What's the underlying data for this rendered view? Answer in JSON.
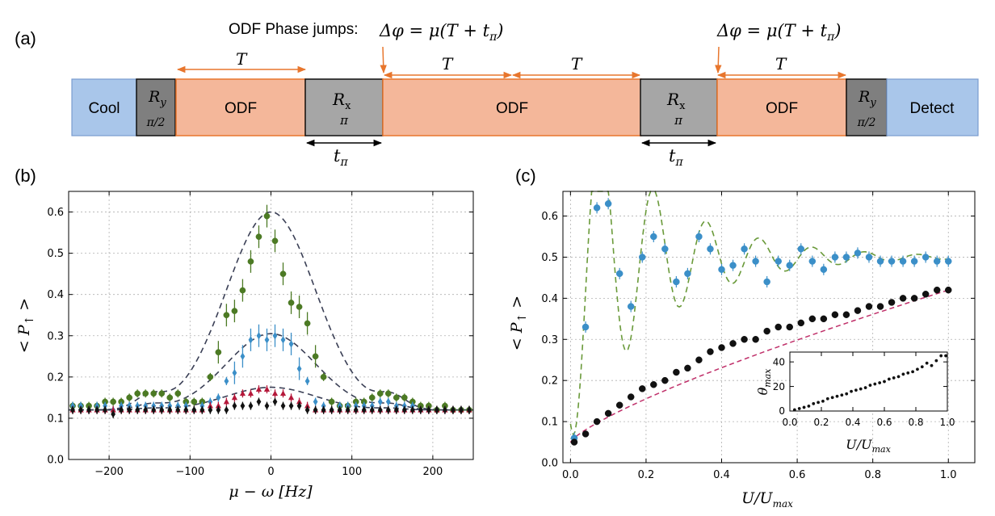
{
  "panel_a": {
    "label": "(a)",
    "odf_caption": "ODF Phase jumps:",
    "phase_formula": "Δφ = μ(T + t",
    "phase_sub": "π",
    "phase_close": ")",
    "T": "T",
    "t_pi": "t",
    "t_pi_sub": "π",
    "blocks": {
      "cool": "Cool",
      "detect": "Detect",
      "odf": "ODF",
      "ry": "R",
      "ry_sub": "y",
      "ry_angle": "π/2",
      "rx": "R",
      "rx_sub": "x",
      "rx_angle": "π"
    },
    "colors": {
      "cool": "#a9c6ea",
      "odf": "#f4b79a",
      "odf_edge": "#e8762d",
      "pulse_light": "#a6a6a6",
      "pulse_dark": "#7f7f7f",
      "arrow": "#e8762d"
    }
  },
  "panel_b": {
    "label": "(b)",
    "xlabel": "μ − ω [Hz]",
    "ylabel": "< P",
    "ylabel_sub": "↑",
    "ylabel_close": " >"
  },
  "panel_c": {
    "label": "(c)",
    "xlabel": "U/U",
    "xlabel_sub": "max",
    "ylabel": "< P",
    "ylabel_sub": "↑",
    "ylabel_close": " >",
    "inset_xlabel": "U/U",
    "inset_xlabel_sub": "max",
    "inset_ylabel": "θ",
    "inset_ylabel_sub": "max"
  },
  "chart_data": [
    {
      "id": "b",
      "type": "scatter",
      "xlim": [
        -250,
        250
      ],
      "ylim": [
        0.0,
        0.65
      ],
      "x_ticks": [
        -200,
        -100,
        0,
        100,
        200
      ],
      "x_tick_labels": [
        "−200",
        "−100",
        "0",
        "100",
        "200"
      ],
      "y_ticks": [
        0.0,
        0.1,
        0.2,
        0.3,
        0.4,
        0.5,
        0.6
      ],
      "y_tick_labels": [
        "0.0",
        "0.1",
        "0.2",
        "0.3",
        "0.4",
        "0.5",
        "0.6"
      ],
      "grid": true,
      "series": [
        {
          "color": "#4c7a24",
          "marker": "circle",
          "fit_peak": 0.6,
          "x": [
            -245,
            -235,
            -225,
            -215,
            -205,
            -195,
            -185,
            -175,
            -165,
            -155,
            -145,
            -135,
            -125,
            -115,
            -105,
            -95,
            -85,
            -75,
            -65,
            -55,
            -45,
            -35,
            -25,
            -15,
            -5,
            5,
            15,
            25,
            35,
            45,
            55,
            65,
            75,
            85,
            95,
            105,
            115,
            125,
            135,
            145,
            155,
            165,
            175,
            185,
            195,
            205,
            215,
            225,
            235,
            245
          ],
          "y": [
            0.13,
            0.13,
            0.13,
            0.13,
            0.14,
            0.14,
            0.14,
            0.15,
            0.16,
            0.16,
            0.16,
            0.16,
            0.15,
            0.16,
            0.14,
            0.14,
            0.14,
            0.2,
            0.26,
            0.35,
            0.36,
            0.41,
            0.48,
            0.54,
            0.59,
            0.53,
            0.45,
            0.38,
            0.37,
            0.33,
            0.25,
            0.2,
            0.14,
            0.13,
            0.13,
            0.14,
            0.14,
            0.15,
            0.16,
            0.16,
            0.15,
            0.15,
            0.14,
            0.13,
            0.13,
            0.12,
            0.13,
            0.12,
            0.12,
            0.12
          ]
        },
        {
          "color": "#3b8fc8",
          "marker": "diamond",
          "fit_peak": 0.305,
          "x": [
            -245,
            -235,
            -225,
            -215,
            -205,
            -195,
            -185,
            -175,
            -165,
            -155,
            -145,
            -135,
            -125,
            -115,
            -105,
            -95,
            -85,
            -75,
            -65,
            -55,
            -45,
            -35,
            -25,
            -15,
            -5,
            5,
            15,
            25,
            35,
            45,
            55,
            65,
            75,
            85,
            95,
            105,
            115,
            125,
            135,
            145,
            155,
            165,
            175,
            185,
            195,
            205,
            215,
            225,
            235,
            245
          ],
          "y": [
            0.13,
            0.13,
            0.12,
            0.13,
            0.13,
            0.12,
            0.13,
            0.13,
            0.13,
            0.13,
            0.13,
            0.13,
            0.13,
            0.13,
            0.13,
            0.12,
            0.13,
            0.14,
            0.15,
            0.19,
            0.21,
            0.25,
            0.29,
            0.3,
            0.29,
            0.3,
            0.29,
            0.28,
            0.22,
            0.19,
            0.14,
            0.13,
            0.12,
            0.13,
            0.13,
            0.13,
            0.13,
            0.13,
            0.14,
            0.14,
            0.13,
            0.13,
            0.13,
            0.12,
            0.12,
            0.12,
            0.12,
            0.12,
            0.12,
            0.12
          ]
        },
        {
          "color": "#b5183a",
          "marker": "triangle",
          "fit_peak": 0.175,
          "x": [
            -245,
            -235,
            -225,
            -215,
            -205,
            -195,
            -185,
            -175,
            -165,
            -155,
            -145,
            -135,
            -125,
            -115,
            -105,
            -95,
            -85,
            -75,
            -65,
            -55,
            -45,
            -35,
            -25,
            -15,
            -5,
            5,
            15,
            25,
            35,
            45,
            55,
            65,
            75,
            85,
            95,
            105,
            115,
            125,
            135,
            145,
            155,
            165,
            175,
            185,
            195,
            205,
            215,
            225,
            235,
            245
          ],
          "y": [
            0.12,
            0.12,
            0.12,
            0.12,
            0.12,
            0.12,
            0.12,
            0.12,
            0.12,
            0.12,
            0.12,
            0.12,
            0.12,
            0.12,
            0.12,
            0.12,
            0.12,
            0.13,
            0.13,
            0.14,
            0.15,
            0.16,
            0.16,
            0.17,
            0.17,
            0.16,
            0.16,
            0.15,
            0.14,
            0.13,
            0.12,
            0.12,
            0.12,
            0.12,
            0.12,
            0.12,
            0.12,
            0.12,
            0.12,
            0.12,
            0.12,
            0.12,
            0.12,
            0.12,
            0.12,
            0.12,
            0.12,
            0.12,
            0.12,
            0.12
          ]
        },
        {
          "color": "#111111",
          "marker": "diamond",
          "fit_peak": null,
          "x": [
            -245,
            -235,
            -225,
            -215,
            -205,
            -195,
            -185,
            -175,
            -165,
            -155,
            -145,
            -135,
            -125,
            -115,
            -105,
            -95,
            -85,
            -75,
            -65,
            -55,
            -45,
            -35,
            -25,
            -15,
            -5,
            5,
            15,
            25,
            35,
            45,
            55,
            65,
            75,
            85,
            95,
            105,
            115,
            125,
            135,
            145,
            155,
            165,
            175,
            185,
            195,
            205,
            215,
            225,
            235,
            245
          ],
          "y": [
            0.12,
            0.12,
            0.12,
            0.12,
            0.12,
            0.11,
            0.12,
            0.12,
            0.12,
            0.12,
            0.12,
            0.12,
            0.12,
            0.12,
            0.12,
            0.12,
            0.12,
            0.12,
            0.12,
            0.12,
            0.13,
            0.13,
            0.13,
            0.14,
            0.13,
            0.14,
            0.13,
            0.13,
            0.13,
            0.12,
            0.12,
            0.12,
            0.12,
            0.12,
            0.12,
            0.12,
            0.12,
            0.12,
            0.12,
            0.12,
            0.12,
            0.12,
            0.12,
            0.12,
            0.12,
            0.12,
            0.12,
            0.12,
            0.12,
            0.12
          ]
        }
      ]
    },
    {
      "id": "c",
      "type": "scatter",
      "xlim": [
        -0.02,
        1.07
      ],
      "ylim": [
        0.0,
        0.66
      ],
      "x_ticks": [
        0.0,
        0.2,
        0.4,
        0.6,
        0.8,
        1.0
      ],
      "x_tick_labels": [
        "0.0",
        "0.2",
        "0.4",
        "0.6",
        "0.8",
        "1.0"
      ],
      "y_ticks": [
        0.0,
        0.1,
        0.2,
        0.3,
        0.4,
        0.5,
        0.6
      ],
      "y_tick_labels": [
        "0.0",
        "0.1",
        "0.2",
        "0.3",
        "0.4",
        "0.5",
        "0.6"
      ],
      "grid": true,
      "series": [
        {
          "color": "#3b8fc8",
          "marker": "circle",
          "fit_color": "#6a9a3a",
          "x": [
            0.01,
            0.04,
            0.07,
            0.1,
            0.13,
            0.16,
            0.19,
            0.22,
            0.25,
            0.28,
            0.31,
            0.34,
            0.37,
            0.4,
            0.43,
            0.46,
            0.49,
            0.52,
            0.55,
            0.58,
            0.61,
            0.64,
            0.67,
            0.7,
            0.73,
            0.76,
            0.79,
            0.82,
            0.85,
            0.88,
            0.91,
            0.94,
            0.97,
            1.0
          ],
          "y": [
            0.06,
            0.33,
            0.62,
            0.63,
            0.46,
            0.38,
            0.5,
            0.55,
            0.52,
            0.44,
            0.46,
            0.55,
            0.52,
            0.47,
            0.48,
            0.52,
            0.49,
            0.44,
            0.49,
            0.48,
            0.52,
            0.49,
            0.47,
            0.5,
            0.5,
            0.51,
            0.5,
            0.49,
            0.49,
            0.49,
            0.49,
            0.5,
            0.49,
            0.49
          ]
        },
        {
          "color": "#111111",
          "marker": "circle",
          "fit_color": "#c0306a",
          "x": [
            0.01,
            0.04,
            0.07,
            0.1,
            0.13,
            0.16,
            0.19,
            0.22,
            0.25,
            0.28,
            0.31,
            0.34,
            0.37,
            0.4,
            0.43,
            0.46,
            0.49,
            0.52,
            0.55,
            0.58,
            0.61,
            0.64,
            0.67,
            0.7,
            0.73,
            0.76,
            0.79,
            0.82,
            0.85,
            0.88,
            0.91,
            0.94,
            0.97,
            1.0
          ],
          "y": [
            0.05,
            0.07,
            0.1,
            0.12,
            0.14,
            0.16,
            0.18,
            0.19,
            0.2,
            0.22,
            0.23,
            0.25,
            0.27,
            0.28,
            0.29,
            0.3,
            0.3,
            0.32,
            0.33,
            0.33,
            0.34,
            0.35,
            0.35,
            0.36,
            0.36,
            0.37,
            0.38,
            0.38,
            0.39,
            0.4,
            0.4,
            0.41,
            0.42,
            0.42
          ]
        }
      ]
    },
    {
      "id": "c_inset",
      "type": "scatter",
      "xlim": [
        0.0,
        1.0
      ],
      "ylim": [
        0,
        48
      ],
      "x_ticks": [
        0.0,
        0.2,
        0.4,
        0.6,
        0.8,
        1.0
      ],
      "x_tick_labels": [
        "0.0",
        "0.2",
        "0.4",
        "0.6",
        "0.8",
        "1.0"
      ],
      "y_ticks": [
        0,
        20,
        40
      ],
      "y_tick_labels": [
        "0",
        "20",
        "40"
      ],
      "grid": false,
      "series": [
        {
          "color": "#111111",
          "marker": "circle",
          "x": [
            0.03,
            0.06,
            0.09,
            0.12,
            0.15,
            0.18,
            0.21,
            0.24,
            0.27,
            0.3,
            0.33,
            0.36,
            0.39,
            0.42,
            0.45,
            0.48,
            0.51,
            0.54,
            0.57,
            0.6,
            0.63,
            0.66,
            0.69,
            0.72,
            0.75,
            0.78,
            0.81,
            0.84,
            0.87,
            0.9,
            0.93,
            0.96,
            0.99
          ],
          "y": [
            1,
            2,
            3,
            4,
            6,
            7,
            8,
            10,
            11,
            12,
            13,
            14,
            16,
            17,
            18,
            19,
            21,
            22,
            23,
            24,
            26,
            27,
            28,
            30,
            31,
            32,
            34,
            36,
            39,
            37,
            41,
            45,
            45
          ]
        }
      ]
    }
  ]
}
